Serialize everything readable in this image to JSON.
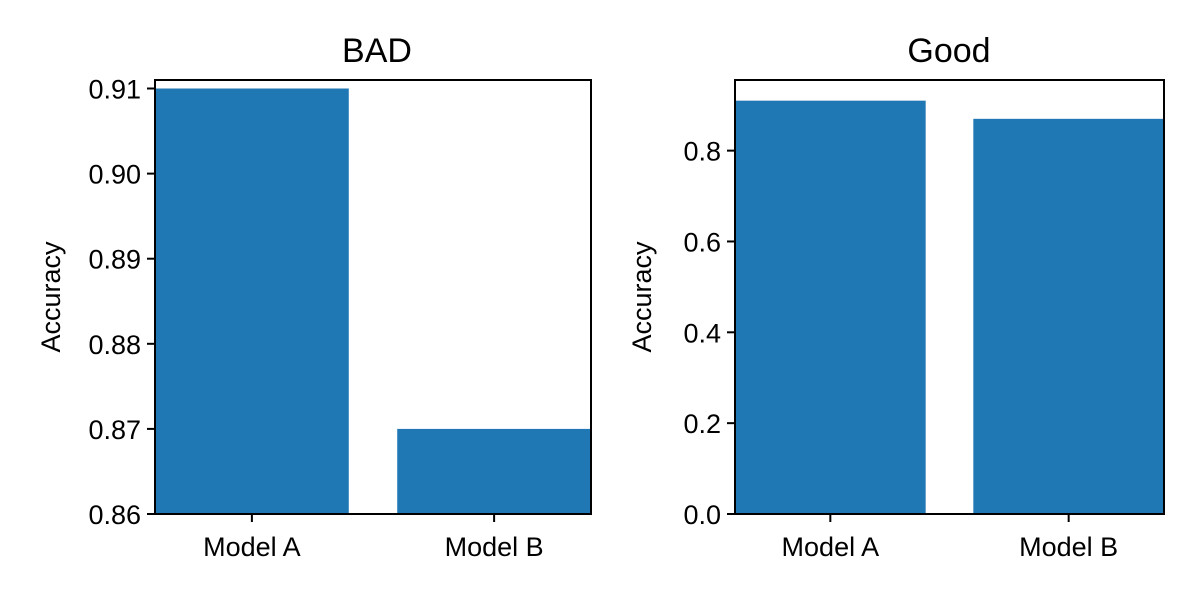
{
  "chart_data": [
    {
      "type": "bar",
      "title": "BAD",
      "categories": [
        "Model A",
        "Model B"
      ],
      "values": [
        0.91,
        0.87
      ],
      "xlabel": "",
      "ylabel": "Accuracy",
      "ylim": [
        0.86,
        0.911
      ],
      "yticks": [
        0.86,
        0.87,
        0.88,
        0.89,
        0.9,
        0.91
      ],
      "ytick_labels": [
        "0.86",
        "0.87",
        "0.88",
        "0.89",
        "0.90",
        "0.91"
      ],
      "grid": false,
      "bar_color": "#1f77b4"
    },
    {
      "type": "bar",
      "title": "Good",
      "categories": [
        "Model A",
        "Model B"
      ],
      "values": [
        0.91,
        0.87
      ],
      "xlabel": "",
      "ylabel": "Accuracy",
      "ylim": [
        0,
        0.9555
      ],
      "yticks": [
        0.0,
        0.2,
        0.4,
        0.6,
        0.8
      ],
      "ytick_labels": [
        "0.0",
        "0.2",
        "0.4",
        "0.6",
        "0.8"
      ],
      "grid": false,
      "bar_color": "#1f77b4"
    }
  ]
}
